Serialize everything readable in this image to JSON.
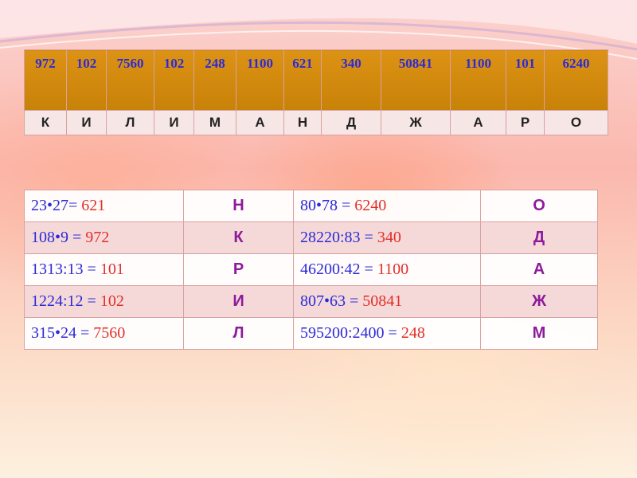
{
  "cipher": [
    {
      "num": "972",
      "letter": "К"
    },
    {
      "num": "102",
      "letter": "И"
    },
    {
      "num": "7560",
      "letter": "Л"
    },
    {
      "num": "102",
      "letter": "И"
    },
    {
      "num": "248",
      "letter": "М"
    },
    {
      "num": "1100",
      "letter": "А"
    },
    {
      "num": "621",
      "letter": "Н"
    },
    {
      "num": "340",
      "letter": "Д"
    },
    {
      "num": "50841",
      "letter": "Ж"
    },
    {
      "num": "1100",
      "letter": "А"
    },
    {
      "num": "101",
      "letter": "Р"
    },
    {
      "num": "6240",
      "letter": "О"
    }
  ],
  "tasks": [
    {
      "left": {
        "expr": "23•27=",
        "result": "621",
        "letter": "Н"
      },
      "right": {
        "expr": "80•78 =",
        "result": "6240",
        "letter": "О"
      }
    },
    {
      "left": {
        "expr": "108•9 =",
        "result": "972",
        "letter": "К"
      },
      "right": {
        "expr": "28220:83 =",
        "result": "340",
        "letter": "Д"
      }
    },
    {
      "left": {
        "expr": "1313:13 =",
        "result": "101",
        "letter": "Р"
      },
      "right": {
        "expr": "46200:42 =",
        "result": "1100",
        "letter": "А"
      }
    },
    {
      "left": {
        "expr": "1224:12 =",
        "result": "102",
        "letter": "И"
      },
      "right": {
        "expr": "807•63 =",
        "result": "50841",
        "letter": "Ж"
      }
    },
    {
      "left": {
        "expr": "315•24 =",
        "result": "7560",
        "letter": "Л"
      },
      "right": {
        "expr": "595200:2400 =",
        "result": "248",
        "letter": "М"
      }
    }
  ],
  "colors": {
    "header_bg": "#dc9214",
    "number_text": "#2b2bd6",
    "result_text": "#e0302a",
    "letter_text": "#8e1b9c"
  }
}
